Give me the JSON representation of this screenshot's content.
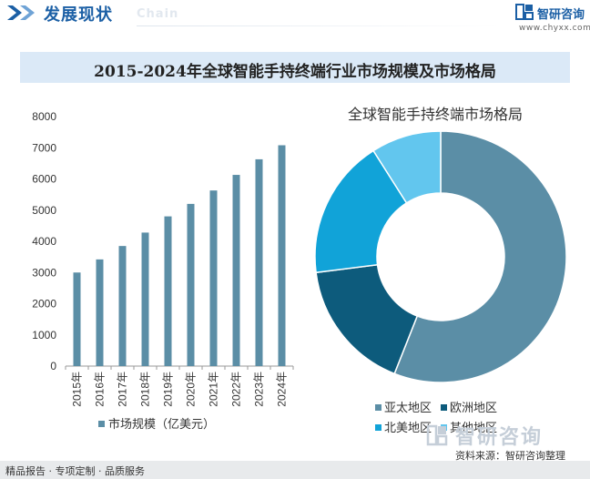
{
  "header": {
    "title": "发展现状",
    "subtitle": "Chain"
  },
  "brand": {
    "name": "智研咨询",
    "url": "www.chyxx.com"
  },
  "colors": {
    "bar": "#5b8ea6",
    "asia_pacific": "#5b8ea6",
    "europe": "#0d5b7c",
    "north_america": "#11a3d8",
    "other": "#62c6ee",
    "banner_bg": "#dbe9f7",
    "brand_blue": "#1b5fa5"
  },
  "chart_data": [
    {
      "type": "bar",
      "title": "2015-2024年全球智能手持终端行业市场规模及市场格局",
      "categories": [
        "2015年",
        "2016年",
        "2017年",
        "2018年",
        "2019年",
        "2020年",
        "2021年",
        "2022年",
        "2023年",
        "2024年"
      ],
      "series": [
        {
          "name": "市场规模（亿美元）",
          "values": [
            3000,
            3420,
            3850,
            4280,
            4800,
            5200,
            5630,
            6130,
            6630,
            7080
          ]
        }
      ],
      "ylim": [
        0,
        8000
      ],
      "yticks": [
        0,
        1000,
        2000,
        3000,
        4000,
        5000,
        6000,
        7000,
        8000
      ],
      "grid": false,
      "legend": "bottom"
    },
    {
      "type": "pie",
      "subtype": "donut",
      "title": "全球智能手持终端市场格局",
      "categories": [
        "亚太地区",
        "欧洲地区",
        "北美地区",
        "其他地区"
      ],
      "values": [
        56,
        17,
        18,
        9
      ],
      "legend": "bottom"
    }
  ],
  "footer": {
    "left": "精品报告 · 专项定制 · 品质服务",
    "source": "资料来源：智研咨询整理",
    "watermark": "智研咨询"
  }
}
